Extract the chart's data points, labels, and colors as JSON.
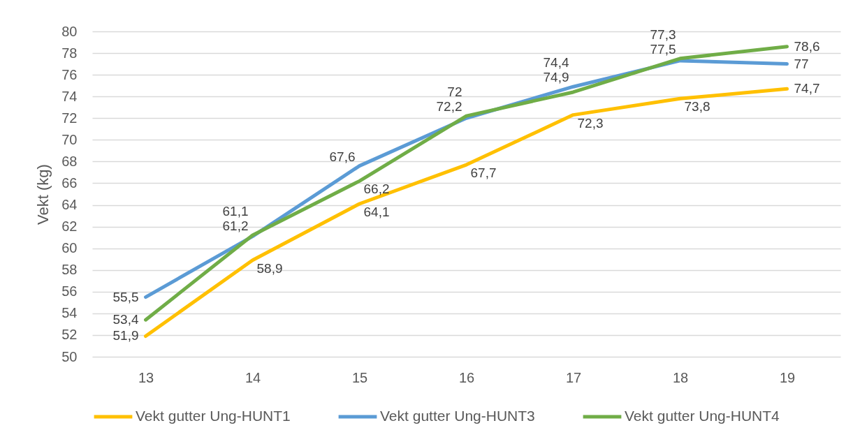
{
  "chart_data": {
    "type": "line",
    "ylabel": "Vekt (kg)",
    "categories": [
      "13",
      "14",
      "15",
      "16",
      "17",
      "18",
      "19"
    ],
    "series": [
      {
        "name": "Vekt gutter Ung-HUNT1",
        "color": "#ffc000",
        "values": [
          51.9,
          58.9,
          64.1,
          67.7,
          72.3,
          73.8,
          74.7
        ],
        "value_labels": [
          "51,9",
          "58,9",
          "64,1",
          "67,7",
          "72,3",
          "73,8",
          "74,7"
        ]
      },
      {
        "name": "Vekt gutter Ung-HUNT3",
        "color": "#5b9bd5",
        "values": [
          55.5,
          61.1,
          67.6,
          72.0,
          74.9,
          77.3,
          77.0
        ],
        "value_labels": [
          "55,5",
          "61,1",
          "67,6",
          "72",
          "74,9",
          "77,3",
          "77"
        ]
      },
      {
        "name": "Vekt gutter Ung-HUNT4",
        "color": "#70ad47",
        "values": [
          53.4,
          61.2,
          66.2,
          72.2,
          74.4,
          77.5,
          78.6
        ],
        "value_labels": [
          "53,4",
          "61,2",
          "66,2",
          "72,2",
          "74,4",
          "77,5",
          "78,6"
        ]
      }
    ],
    "ylim": [
      50,
      80
    ],
    "yticks": [
      50,
      52,
      54,
      56,
      58,
      60,
      62,
      64,
      66,
      68,
      70,
      72,
      74,
      76,
      78,
      80
    ],
    "grid": "y",
    "legend": "bottom",
    "line_style": "solid"
  }
}
